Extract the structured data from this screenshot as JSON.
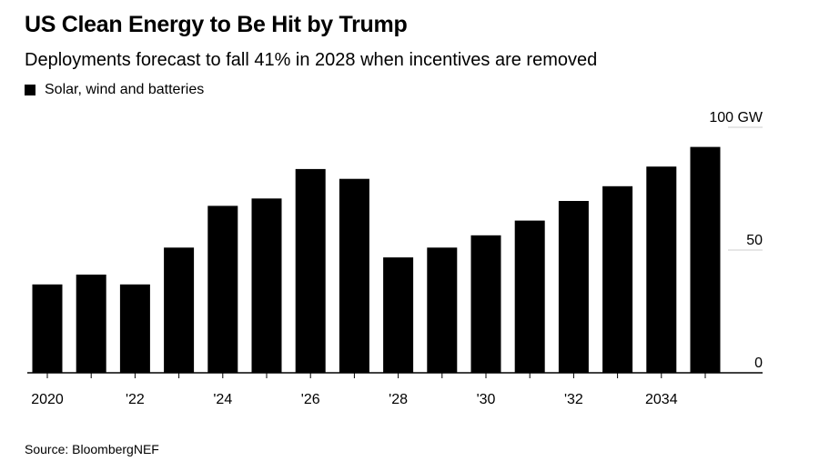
{
  "header": {
    "title": "US Clean Energy to Be Hit by Trump",
    "subtitle": "Deployments forecast to fall 41% in 2028 when incentives are removed"
  },
  "legend": {
    "label": "Solar, wind and batteries",
    "color": "#000000"
  },
  "footer": {
    "source": "Source: BloombergNEF"
  },
  "chart_data": {
    "type": "bar",
    "title": "US Clean Energy to Be Hit by Trump",
    "subtitle": "Deployments forecast to fall 41% in 2028 when incentives are removed",
    "categories": [
      "2020",
      "2021",
      "2022",
      "2023",
      "2024",
      "2025",
      "2026",
      "2027",
      "2028",
      "2029",
      "2030",
      "2031",
      "2032",
      "2033",
      "2034",
      "2035"
    ],
    "series": [
      {
        "name": "Solar, wind and batteries",
        "color": "#000000",
        "values": [
          36,
          40,
          36,
          51,
          68,
          71,
          83,
          79,
          47,
          51,
          56,
          62,
          70,
          76,
          84,
          92
        ]
      }
    ],
    "x_tick_labels": [
      {
        "category": "2020",
        "label": "2020"
      },
      {
        "category": "2022",
        "label": "'22"
      },
      {
        "category": "2024",
        "label": "'24"
      },
      {
        "category": "2026",
        "label": "'26"
      },
      {
        "category": "2028",
        "label": "'28"
      },
      {
        "category": "2030",
        "label": "'30"
      },
      {
        "category": "2032",
        "label": "'32"
      },
      {
        "category": "2034",
        "label": "2034"
      }
    ],
    "y_ticks": [
      {
        "value": 0,
        "label": "0"
      },
      {
        "value": 50,
        "label": "50"
      },
      {
        "value": 100,
        "label": "100 GW"
      }
    ],
    "ylim": [
      0,
      100
    ],
    "y_axis_position": "right",
    "grid": true,
    "grid_color": "#cccccc",
    "legend_position": "top-left",
    "xlabel": "",
    "ylabel": ""
  }
}
